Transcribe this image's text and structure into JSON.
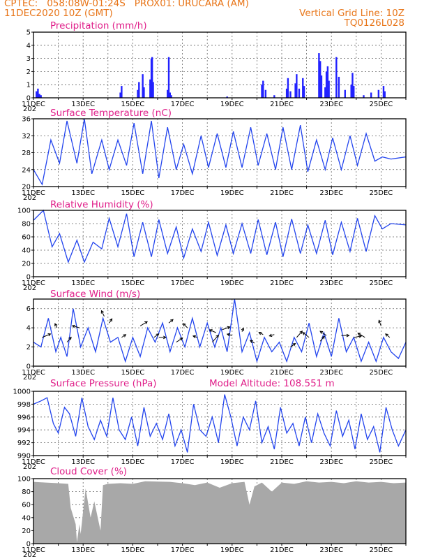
{
  "header": {
    "line1_left": "CPTEC:   058:08W-01:24S   PROX01: URUCARA (AM)",
    "line2_left": "11DEC2020 10Z (GMT)",
    "line2_right": "Vertical Grid Line: 10Z",
    "line3_right": "TQ0126L028"
  },
  "x_axis": {
    "labels": [
      "11DEC",
      "13DEC",
      "15DEC",
      "17DEC",
      "19DEC",
      "21DEC",
      "23DEC",
      "25DEC"
    ],
    "clipped_year": "202"
  },
  "chart_data": [
    {
      "type": "bar",
      "title": "Precipitation (mm/h)",
      "ylim": [
        0,
        5
      ],
      "yticks": [
        0,
        1,
        2,
        3,
        4,
        5
      ],
      "grid": true,
      "color": "#2222ff",
      "x_days": [
        0.12,
        0.18,
        0.24,
        0.3,
        3.5,
        3.55,
        4.2,
        4.25,
        4.4,
        4.45,
        4.7,
        4.75,
        4.78,
        4.82,
        5.4,
        5.45,
        5.5,
        5.55,
        7.8,
        9.2,
        9.25,
        9.35,
        9.7,
        10.2,
        10.25,
        10.35,
        10.55,
        10.6,
        10.7,
        10.85,
        10.9,
        11.5,
        11.55,
        11.6,
        11.75,
        11.8,
        11.85,
        11.9,
        12.2,
        12.3,
        12.55,
        12.8,
        12.85,
        12.9,
        13.3,
        13.6,
        13.9,
        14.1,
        14.15
      ],
      "values": [
        0.5,
        0.7,
        0.3,
        0.2,
        0.4,
        0.9,
        0.6,
        1.2,
        1.8,
        0.8,
        1.4,
        3.0,
        3.1,
        1.2,
        0.6,
        3.1,
        0.4,
        0.2,
        0.1,
        1.0,
        1.3,
        0.6,
        0.2,
        0.7,
        1.5,
        0.5,
        1.1,
        1.8,
        0.7,
        1.5,
        0.9,
        3.4,
        2.8,
        1.7,
        0.8,
        2.0,
        2.4,
        1.3,
        3.1,
        1.6,
        0.6,
        1.0,
        1.9,
        0.9,
        0.2,
        0.4,
        0.6,
        0.9,
        0.5
      ]
    },
    {
      "type": "line",
      "title": "Surface Temperature (nC)",
      "ylim": [
        20,
        36
      ],
      "yticks": [
        20,
        24,
        28,
        32,
        36
      ],
      "grid": true,
      "color": "#2244ee",
      "x_days": [
        0,
        0.35,
        0.7,
        1.05,
        1.35,
        1.75,
        2.05,
        2.35,
        2.75,
        3.05,
        3.4,
        3.75,
        4.05,
        4.4,
        4.75,
        5.05,
        5.4,
        5.75,
        6.05,
        6.4,
        6.75,
        7.05,
        7.4,
        7.75,
        8.05,
        8.4,
        8.75,
        9.05,
        9.4,
        9.75,
        10.05,
        10.4,
        10.75,
        11.05,
        11.4,
        11.75,
        12.05,
        12.4,
        12.75,
        13.05,
        13.4,
        13.75,
        14.05,
        14.4,
        15
      ],
      "values": [
        24,
        20.5,
        31,
        25.5,
        35.5,
        25.5,
        36,
        23,
        31,
        24,
        31,
        25,
        35,
        23,
        35.5,
        22,
        34,
        24,
        30,
        23,
        32,
        24.5,
        32.5,
        24.5,
        33,
        24.5,
        34,
        25,
        32.5,
        24,
        34,
        24,
        34.5,
        23.5,
        31,
        24,
        31.5,
        24,
        32,
        25,
        32.5,
        26,
        27,
        26.5,
        27
      ]
    },
    {
      "type": "line",
      "title": "Relative Humidity (%)",
      "ylim": [
        0,
        100
      ],
      "yticks": [
        0,
        20,
        40,
        60,
        80,
        100
      ],
      "grid": true,
      "color": "#2244ee",
      "x_days": [
        0,
        0.4,
        0.75,
        1.05,
        1.4,
        1.75,
        2.05,
        2.4,
        2.75,
        3.05,
        3.4,
        3.75,
        4.05,
        4.4,
        4.75,
        5.05,
        5.4,
        5.75,
        6.05,
        6.4,
        6.75,
        7.05,
        7.4,
        7.75,
        8.05,
        8.4,
        8.75,
        9.05,
        9.4,
        9.75,
        10.05,
        10.4,
        10.75,
        11.05,
        11.4,
        11.75,
        12.05,
        12.4,
        12.75,
        13.05,
        13.4,
        13.75,
        14.05,
        14.4,
        15
      ],
      "values": [
        85,
        100,
        45,
        65,
        22,
        55,
        22,
        52,
        42,
        88,
        45,
        95,
        30,
        82,
        30,
        86,
        35,
        75,
        28,
        72,
        38,
        82,
        32,
        78,
        35,
        80,
        35,
        86,
        33,
        82,
        30,
        87,
        35,
        78,
        35,
        85,
        33,
        82,
        38,
        88,
        38,
        92,
        72,
        80,
        78
      ]
    },
    {
      "type": "line",
      "title": "Surface Wind (m/s)",
      "ylim": [
        0,
        7
      ],
      "yticks": [
        0,
        2,
        4,
        6
      ],
      "grid": true,
      "color": "#2244ee",
      "x_days": [
        0,
        0.3,
        0.6,
        0.9,
        1.1,
        1.35,
        1.6,
        1.9,
        2.2,
        2.5,
        2.8,
        3.1,
        3.4,
        3.7,
        4.0,
        4.3,
        4.6,
        4.9,
        5.2,
        5.5,
        5.8,
        6.1,
        6.4,
        6.7,
        7.0,
        7.3,
        7.55,
        7.8,
        8.1,
        8.4,
        8.7,
        9.0,
        9.3,
        9.6,
        9.9,
        10.2,
        10.5,
        10.8,
        11.1,
        11.4,
        11.7,
        12.0,
        12.3,
        12.6,
        12.9,
        13.2,
        13.5,
        13.8,
        14.1,
        14.4,
        14.7,
        15
      ],
      "values": [
        2.5,
        2,
        5,
        1.5,
        3,
        1,
        6,
        2,
        4,
        1.5,
        5,
        2.5,
        3,
        0.5,
        3,
        1,
        4,
        2.5,
        4.5,
        1.5,
        4,
        2,
        5,
        2,
        4.5,
        2,
        4,
        1.5,
        7,
        1.5,
        3.5,
        0.5,
        3,
        1.5,
        2.5,
        0.5,
        3,
        1.5,
        4.5,
        1,
        3.5,
        1,
        5,
        1.5,
        3,
        0.5,
        2.5,
        0.5,
        3,
        1.5,
        0.8,
        2.5
      ],
      "arrows": [
        {
          "x_day": 0.35,
          "y": 3.0,
          "dx": 12,
          "dy": -5
        },
        {
          "x_day": 0.95,
          "y": 4.0,
          "dx": -3,
          "dy": -6
        },
        {
          "x_day": 1.35,
          "y": 2.5,
          "dx": 6,
          "dy": -7
        },
        {
          "x_day": 1.85,
          "y": 4.0,
          "dx": -10,
          "dy": -3
        },
        {
          "x_day": 2.85,
          "y": 5.2,
          "dx": -4,
          "dy": -8
        },
        {
          "x_day": 3.05,
          "y": 4.5,
          "dx": 4,
          "dy": -6
        },
        {
          "x_day": 3.55,
          "y": 3.0,
          "dx": 6,
          "dy": -4
        },
        {
          "x_day": 4.3,
          "y": 4.2,
          "dx": 10,
          "dy": -6
        },
        {
          "x_day": 4.85,
          "y": 3.0,
          "dx": 7,
          "dy": -5
        },
        {
          "x_day": 5.05,
          "y": 3.0,
          "dx": 10,
          "dy": 0
        },
        {
          "x_day": 5.45,
          "y": 4.5,
          "dx": 6,
          "dy": -5
        },
        {
          "x_day": 5.75,
          "y": 2.5,
          "dx": 9,
          "dy": -6
        },
        {
          "x_day": 6.2,
          "y": 4.0,
          "dx": -6,
          "dy": -6
        },
        {
          "x_day": 6.6,
          "y": 3.0,
          "dx": -6,
          "dy": -2
        },
        {
          "x_day": 7.2,
          "y": 2.5,
          "dx": 9,
          "dy": -10
        },
        {
          "x_day": 7.35,
          "y": 3.5,
          "dx": -9,
          "dy": -4
        },
        {
          "x_day": 7.6,
          "y": 3.8,
          "dx": 11,
          "dy": -4
        },
        {
          "x_day": 8.0,
          "y": 3.2,
          "dx": -7,
          "dy": -2
        },
        {
          "x_day": 8.4,
          "y": 3.6,
          "dx": 2,
          "dy": -5
        },
        {
          "x_day": 8.9,
          "y": 2.4,
          "dx": -6,
          "dy": -4
        },
        {
          "x_day": 9.25,
          "y": 3.3,
          "dx": -6,
          "dy": -3
        },
        {
          "x_day": 9.7,
          "y": 3.3,
          "dx": -7,
          "dy": 2
        },
        {
          "x_day": 10.35,
          "y": 2.0,
          "dx": 7,
          "dy": -5
        },
        {
          "x_day": 10.6,
          "y": 3.0,
          "dx": 8,
          "dy": -9
        },
        {
          "x_day": 11.1,
          "y": 3.0,
          "dx": -9,
          "dy": -7
        },
        {
          "x_day": 11.55,
          "y": 2.6,
          "dx": 6,
          "dy": -7
        },
        {
          "x_day": 11.8,
          "y": 3.2,
          "dx": -9,
          "dy": -6
        },
        {
          "x_day": 12.4,
          "y": 3.2,
          "dx": 11,
          "dy": 0
        },
        {
          "x_day": 12.9,
          "y": 3.0,
          "dx": 11,
          "dy": -2
        },
        {
          "x_day": 13.35,
          "y": 3.0,
          "dx": -10,
          "dy": -6
        },
        {
          "x_day": 14.0,
          "y": 4.2,
          "dx": -3,
          "dy": -8
        },
        {
          "x_day": 14.35,
          "y": 3.0,
          "dx": -6,
          "dy": -5
        }
      ]
    },
    {
      "type": "line",
      "title": "Surface Pressure (hPa)",
      "subtitle": "Model Altitude: 108.551  m",
      "ylim": [
        990,
        1000
      ],
      "yticks": [
        990,
        992,
        994,
        996,
        998,
        1000
      ],
      "grid": true,
      "color": "#2244ee",
      "x_days": [
        0,
        0.3,
        0.55,
        0.8,
        1.0,
        1.25,
        1.45,
        1.7,
        1.95,
        2.2,
        2.45,
        2.7,
        2.95,
        3.2,
        3.45,
        3.7,
        3.95,
        4.2,
        4.45,
        4.7,
        4.95,
        5.2,
        5.45,
        5.7,
        5.95,
        6.2,
        6.45,
        6.7,
        6.95,
        7.2,
        7.45,
        7.7,
        7.95,
        8.2,
        8.45,
        8.7,
        8.95,
        9.2,
        9.45,
        9.7,
        9.95,
        10.2,
        10.45,
        10.7,
        10.95,
        11.2,
        11.45,
        11.7,
        11.95,
        12.2,
        12.45,
        12.7,
        12.95,
        13.2,
        13.45,
        13.7,
        13.95,
        14.2,
        14.45,
        14.7,
        15
      ],
      "values": [
        998,
        998.5,
        999,
        995,
        993.5,
        997.5,
        996.5,
        993,
        999,
        994.5,
        992.5,
        995.5,
        993,
        999,
        994,
        992.5,
        996,
        991.5,
        997.5,
        993,
        995,
        992.5,
        996.5,
        991.5,
        994,
        990.5,
        998,
        994,
        993,
        996,
        992,
        999.5,
        996,
        991.5,
        996,
        994,
        998.5,
        992,
        994.5,
        991,
        997.5,
        993.5,
        995,
        991.5,
        996,
        992,
        996.5,
        993.5,
        991.5,
        997,
        993,
        995.5,
        991,
        996.5,
        992.5,
        994.5,
        990.5,
        997.5,
        994,
        991.5,
        994
      ]
    },
    {
      "type": "area",
      "title": "Cloud Cover (%)",
      "ylim": [
        0,
        100
      ],
      "yticks": [
        0,
        20,
        40,
        60,
        80,
        100
      ],
      "grid": true,
      "color": "#a8a8a8",
      "x_days": [
        0,
        0.5,
        1.0,
        1.4,
        1.5,
        1.7,
        1.75,
        1.85,
        1.9,
        2.1,
        2.3,
        2.45,
        2.7,
        2.8,
        3.0,
        3.5,
        4.0,
        4.5,
        5.5,
        6.0,
        6.5,
        7.0,
        7.5,
        8.0,
        8.5,
        8.7,
        8.9,
        9.2,
        9.6,
        10.0,
        10.5,
        11.0,
        11.5,
        12.0,
        12.5,
        13.0,
        13.5,
        14.0,
        14.5,
        15
      ],
      "values": [
        95,
        94,
        93,
        92,
        55,
        30,
        2,
        30,
        15,
        85,
        40,
        65,
        20,
        90,
        92,
        93,
        92,
        96,
        95,
        93,
        90,
        94,
        86,
        93,
        95,
        60,
        88,
        94,
        80,
        94,
        92,
        96,
        94,
        95,
        93,
        96,
        94,
        95,
        93,
        94
      ]
    }
  ]
}
